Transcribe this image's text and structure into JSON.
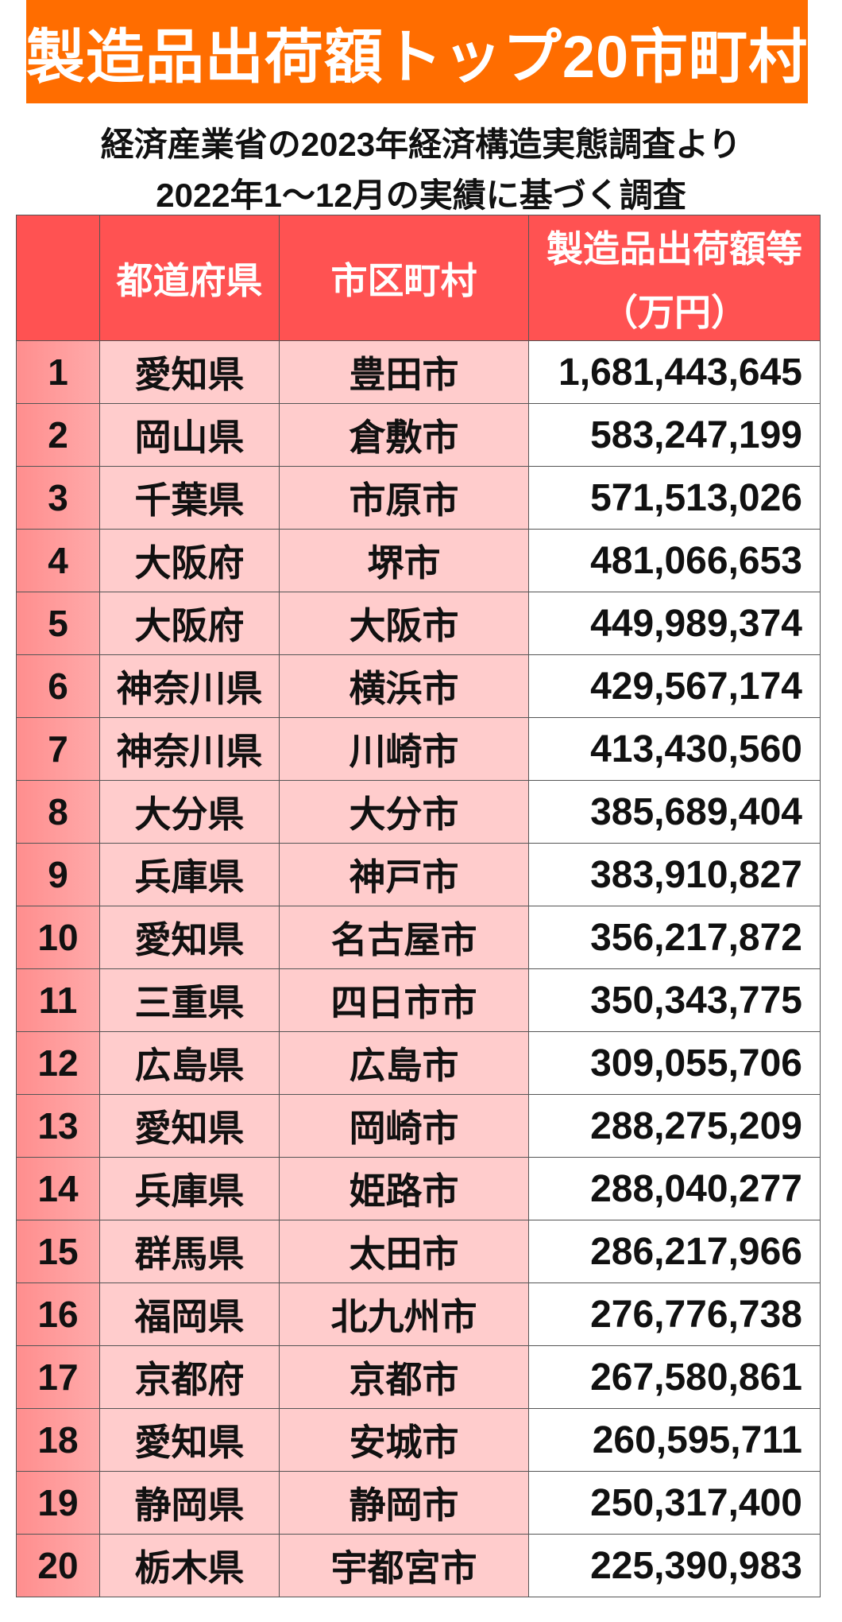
{
  "title": "製造品出荷額トップ20市町村",
  "subtitle_line1": "経済産業省の2023年経済構造実態調査より",
  "subtitle_line2": "2022年1〜12月の実績に基づく調査",
  "colors": {
    "banner": "#FF6D00",
    "header": "#FF5252",
    "rank_cell": "#FF9A9A",
    "name_cell": "#FFCCCC"
  },
  "table": {
    "headers": {
      "rank": "",
      "prefecture": "都道府県",
      "city": "市区町村",
      "value_line1": "製造品出荷額等",
      "value_line2": "（万円）"
    },
    "rows": [
      {
        "rank": "1",
        "prefecture": "愛知県",
        "city": "豊田市",
        "value": "1,681,443,645"
      },
      {
        "rank": "2",
        "prefecture": "岡山県",
        "city": "倉敷市",
        "value": "583,247,199"
      },
      {
        "rank": "3",
        "prefecture": "千葉県",
        "city": "市原市",
        "value": "571,513,026"
      },
      {
        "rank": "4",
        "prefecture": "大阪府",
        "city": "堺市",
        "value": "481,066,653"
      },
      {
        "rank": "5",
        "prefecture": "大阪府",
        "city": "大阪市",
        "value": "449,989,374"
      },
      {
        "rank": "6",
        "prefecture": "神奈川県",
        "city": "横浜市",
        "value": "429,567,174"
      },
      {
        "rank": "7",
        "prefecture": "神奈川県",
        "city": "川崎市",
        "value": "413,430,560"
      },
      {
        "rank": "8",
        "prefecture": "大分県",
        "city": "大分市",
        "value": "385,689,404"
      },
      {
        "rank": "9",
        "prefecture": "兵庫県",
        "city": "神戸市",
        "value": "383,910,827"
      },
      {
        "rank": "10",
        "prefecture": "愛知県",
        "city": "名古屋市",
        "value": "356,217,872"
      },
      {
        "rank": "11",
        "prefecture": "三重県",
        "city": "四日市市",
        "value": "350,343,775"
      },
      {
        "rank": "12",
        "prefecture": "広島県",
        "city": "広島市",
        "value": "309,055,706"
      },
      {
        "rank": "13",
        "prefecture": "愛知県",
        "city": "岡崎市",
        "value": "288,275,209"
      },
      {
        "rank": "14",
        "prefecture": "兵庫県",
        "city": "姫路市",
        "value": "288,040,277"
      },
      {
        "rank": "15",
        "prefecture": "群馬県",
        "city": "太田市",
        "value": "286,217,966"
      },
      {
        "rank": "16",
        "prefecture": "福岡県",
        "city": "北九州市",
        "value": "276,776,738"
      },
      {
        "rank": "17",
        "prefecture": "京都府",
        "city": "京都市",
        "value": "267,580,861"
      },
      {
        "rank": "18",
        "prefecture": "愛知県",
        "city": "安城市",
        "value": "260,595,711"
      },
      {
        "rank": "19",
        "prefecture": "静岡県",
        "city": "静岡市",
        "value": "250,317,400"
      },
      {
        "rank": "20",
        "prefecture": "栃木県",
        "city": "宇都宮市",
        "value": "225,390,983"
      }
    ]
  }
}
